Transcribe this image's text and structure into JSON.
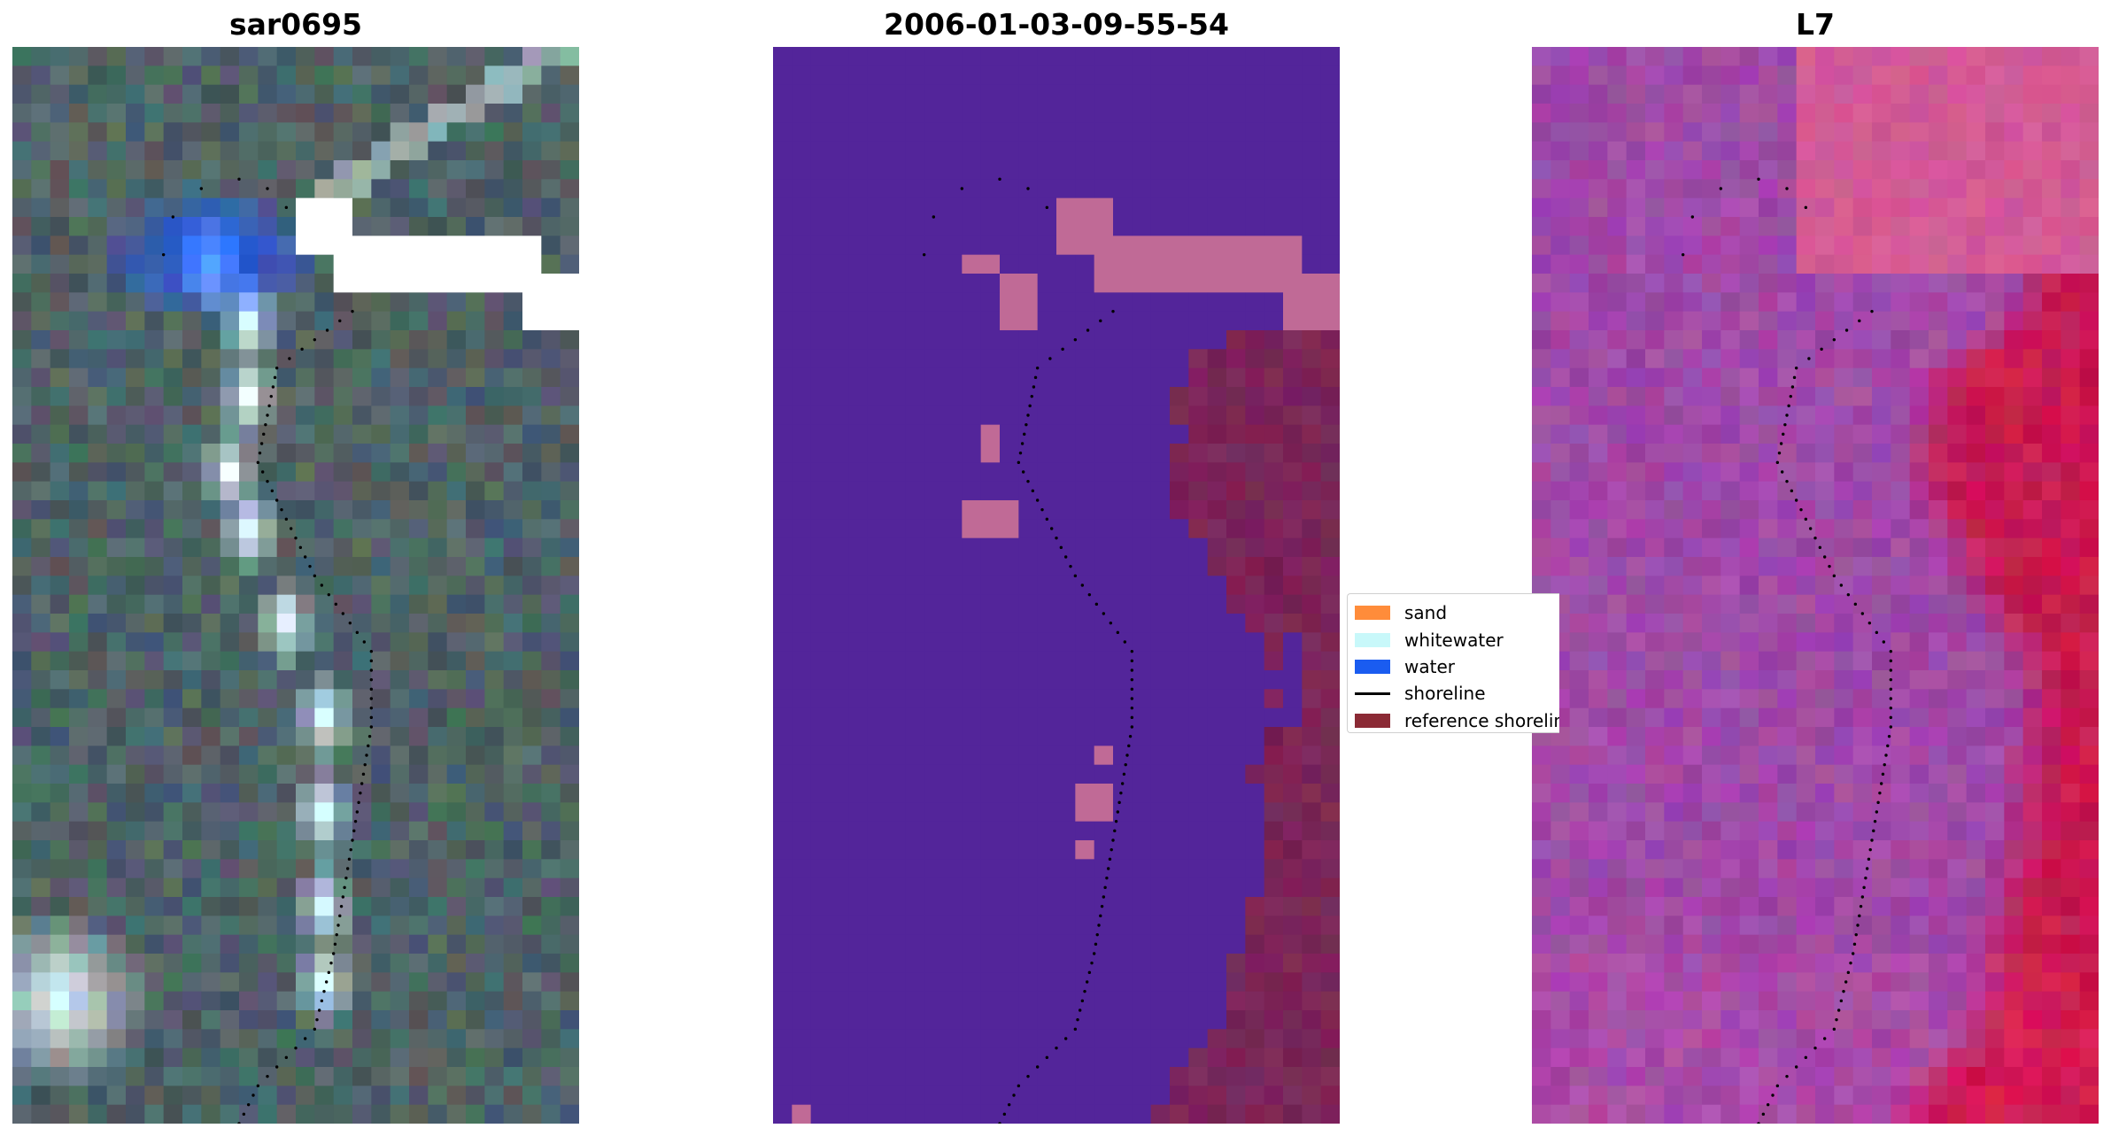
{
  "panels": [
    {
      "title": "sar0695",
      "kind": "rgb"
    },
    {
      "title": "2006-01-03-09-55-54",
      "kind": "classified"
    },
    {
      "title": "L7",
      "kind": "mndwi"
    }
  ],
  "legend": {
    "items": [
      {
        "label": "sand",
        "color": "#ff8c3a",
        "type": "patch"
      },
      {
        "label": "whitewater",
        "color": "#c8f8fa",
        "type": "patch"
      },
      {
        "label": "water",
        "color": "#1a5cf0",
        "type": "patch"
      },
      {
        "label": "shoreline",
        "color": "#000000",
        "type": "line"
      },
      {
        "label": "reference shoreline",
        "color": "#8b2a35",
        "type": "patch"
      }
    ]
  },
  "colors": {
    "classified_water": "#53259a",
    "classified_land": "#7a2558",
    "classified_flag": "#c06a96",
    "rgb_base": "#4f6366",
    "mndwi_land": "#c81a52",
    "mndwi_water": "#a04aa8"
  }
}
